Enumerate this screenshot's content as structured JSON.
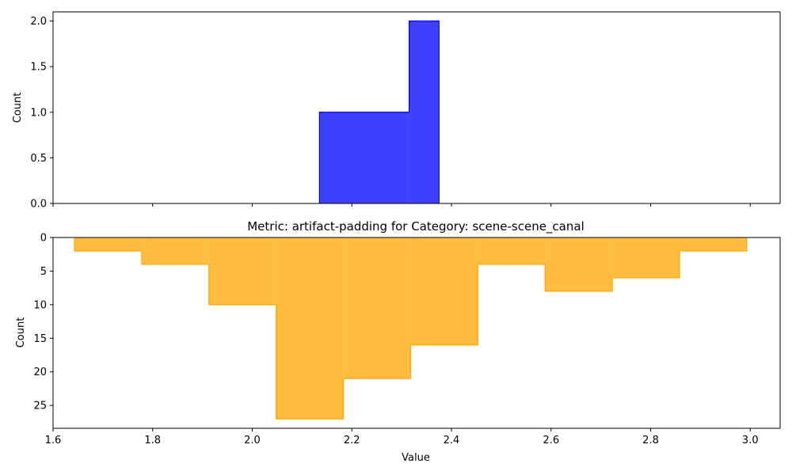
{
  "chart_data": [
    {
      "type": "histogram-step",
      "title": "",
      "xlabel": "",
      "ylabel": "Count",
      "color": "#0000ff",
      "xlim": [
        1.6,
        3.06
      ],
      "ylim": [
        0,
        2.1
      ],
      "bins": [
        {
          "x0": 2.135,
          "x1": 2.315,
          "count": 1
        },
        {
          "x0": 2.315,
          "x1": 2.375,
          "count": 2
        }
      ],
      "xticks": [
        1.6,
        1.8,
        2.0,
        2.2,
        2.4,
        2.6,
        2.8,
        3.0
      ],
      "yticks": [
        "0.0",
        "0.5",
        "1.0",
        "1.5",
        "2.0"
      ],
      "xtick_labels_visible": false
    },
    {
      "type": "histogram-step",
      "title": "Metric: artifact-padding for Category: scene-scene_canal",
      "xlabel": "Value",
      "ylabel": "Count",
      "color": "#ffa500",
      "inverted_y": true,
      "xlim": [
        1.6,
        3.06
      ],
      "ylim": [
        0,
        28.4
      ],
      "bins": [
        {
          "x0": 1.643,
          "x1": 1.778,
          "count": 2
        },
        {
          "x0": 1.778,
          "x1": 1.913,
          "count": 4
        },
        {
          "x0": 1.913,
          "x1": 2.048,
          "count": 10
        },
        {
          "x0": 2.048,
          "x1": 2.183,
          "count": 27
        },
        {
          "x0": 2.183,
          "x1": 2.318,
          "count": 21
        },
        {
          "x0": 2.318,
          "x1": 2.453,
          "count": 16
        },
        {
          "x0": 2.453,
          "x1": 2.588,
          "count": 4
        },
        {
          "x0": 2.588,
          "x1": 2.723,
          "count": 8
        },
        {
          "x0": 2.723,
          "x1": 2.858,
          "count": 6
        },
        {
          "x0": 2.858,
          "x1": 2.993,
          "count": 2
        }
      ],
      "xticks": [
        "1.6",
        "1.8",
        "2.0",
        "2.2",
        "2.4",
        "2.6",
        "2.8",
        "3.0"
      ],
      "yticks": [
        "0",
        "5",
        "10",
        "15",
        "20",
        "25"
      ],
      "xtick_labels_visible": true
    }
  ]
}
